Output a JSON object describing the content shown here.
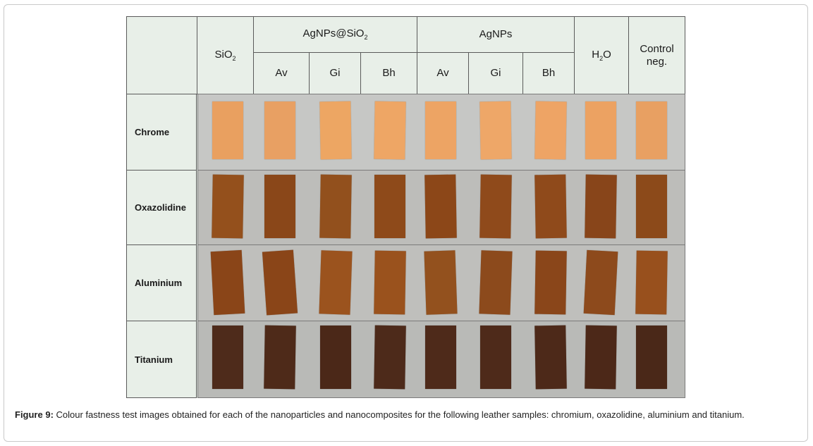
{
  "header": {
    "sio2": "SiO",
    "sio2_sub": "2",
    "agnps_sio2": "AgNPs@SiO",
    "agnps_sio2_sub": "2",
    "agnps": "AgNPs",
    "h2o_a": "H",
    "h2o_sub": "2",
    "h2o_b": "O",
    "control_line1": "Control",
    "control_line2": "neg.",
    "sub_av_1": "Av",
    "sub_gi_1": "Gi",
    "sub_bh_1": "Bh",
    "sub_av_2": "Av",
    "sub_gi_2": "Gi",
    "sub_bh_2": "Bh"
  },
  "rows": [
    {
      "label": "Chrome",
      "background": "#c6c7c5",
      "swatch_colors": [
        "#e9a060",
        "#e8a063",
        "#eda663",
        "#eea665",
        "#eda464",
        "#eea768",
        "#eea465",
        "#eca262",
        "#e8a062"
      ]
    },
    {
      "label": "Oxazolidine",
      "background": "#bdbdba",
      "swatch_colors": [
        "#94501c",
        "#8a4719",
        "#92501d",
        "#8e4a1a",
        "#8c4718",
        "#8f4a1b",
        "#8f4a1b",
        "#88451a",
        "#8c4a1a"
      ]
    },
    {
      "label": "Aluminium",
      "background": "#bfbfbc",
      "swatch_colors": [
        "#8a4518",
        "#8a4518",
        "#9b531e",
        "#9a521d",
        "#93511e",
        "#8c4a1c",
        "#8a461a",
        "#8d4a1c",
        "#98501d"
      ]
    },
    {
      "label": "Titanium",
      "background": "#b9bab7",
      "swatch_colors": [
        "#4e2b1b",
        "#4e2a19",
        "#4b2818",
        "#4d2a1a",
        "#4e2a1a",
        "#4e2a1a",
        "#4d2919",
        "#4c2818",
        "#4a2818"
      ]
    }
  ],
  "caption": {
    "label": "Figure 9:",
    "text": " Colour fastness test images obtained for each of the nanoparticles and nanocomposites for the following leather samples: chromium, oxazolidine, aluminium and titanium."
  }
}
